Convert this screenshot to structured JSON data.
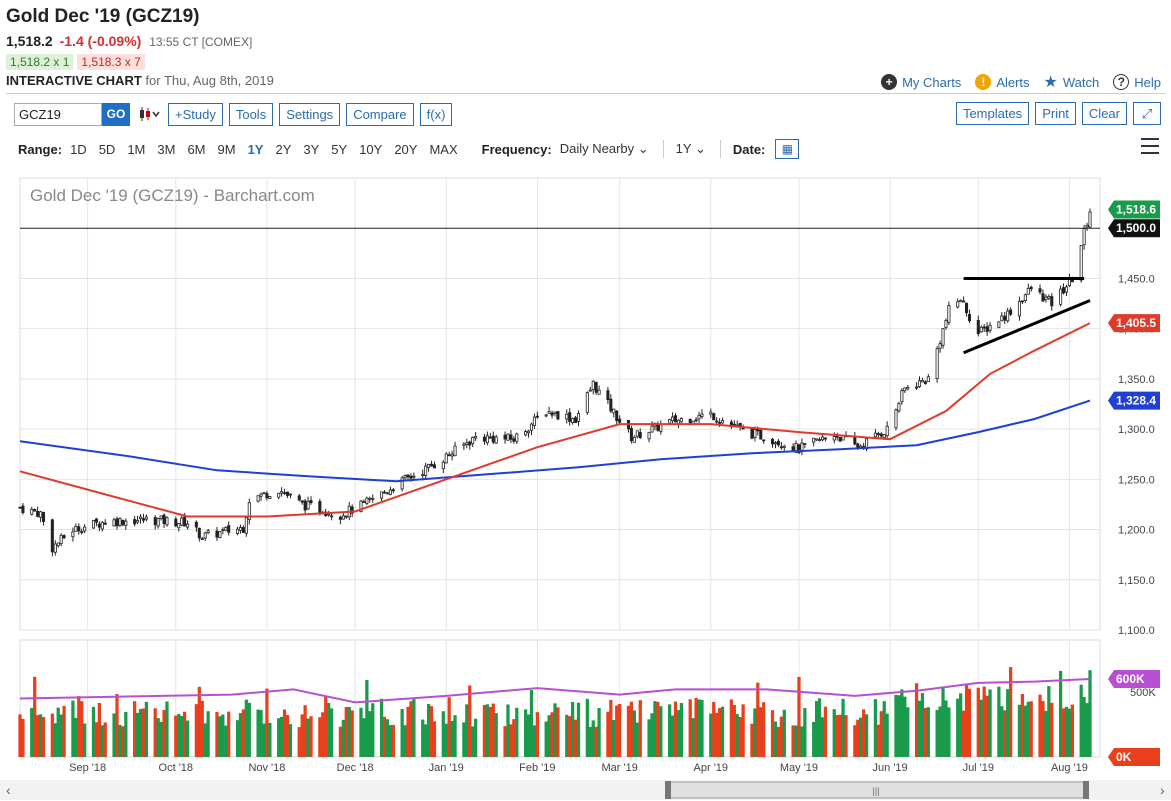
{
  "header": {
    "title": "Gold Dec '19 (GCZ19)",
    "last": "1,518.2",
    "change": "-1.4 (-0.09%)",
    "time": "13:55 CT [COMEX]",
    "bid": "1,518.2 x 1",
    "ask": "1,518.3 x 7",
    "chart_label": "INTERACTIVE CHART",
    "chart_date": "for Thu, Aug 8th, 2019"
  },
  "links": {
    "my_charts": "My Charts",
    "alerts": "Alerts",
    "watch": "Watch",
    "help": "Help"
  },
  "toolbar": {
    "symbol": "GCZ19",
    "go": "GO",
    "study": "+Study",
    "tools": "Tools",
    "settings": "Settings",
    "compare": "Compare",
    "fx": "f(x)",
    "templates": "Templates",
    "print": "Print",
    "clear": "Clear"
  },
  "range": {
    "label": "Range:",
    "options": [
      "1D",
      "5D",
      "1M",
      "3M",
      "6M",
      "9M",
      "1Y",
      "2Y",
      "3Y",
      "5Y",
      "10Y",
      "20Y",
      "MAX"
    ],
    "active": "1Y",
    "frequency_label": "Frequency:",
    "frequency": "Daily Nearby",
    "period": "1Y",
    "date_label": "Date:"
  },
  "colors": {
    "up": "#1a9b4b",
    "down": "#e8401c",
    "ma_fast": "#e03a2a",
    "ma_slow": "#1f3fd6",
    "vol_ma": "#b84fd0",
    "accent": "#2b6cb0"
  },
  "chart_data": {
    "type": "candlestick",
    "title": "Gold Dec '19 (GCZ19) - Barchart.com",
    "ylim": [
      1100,
      1550
    ],
    "y_ticks": [
      "1,100.0",
      "1,150.0",
      "1,200.0",
      "1,250.0",
      "1,300.0",
      "1,350.0",
      "1,400.0",
      "1,450.0"
    ],
    "x_ticks": [
      "Sep '18",
      "Oct '18",
      "Nov '18",
      "Dec '18",
      "Jan '19",
      "Feb '19",
      "Mar '19",
      "Apr '19",
      "May '19",
      "Jun '19",
      "Jul '19",
      "Aug '19"
    ],
    "price_labels": [
      {
        "value": 1518.6,
        "text": "1,518.6",
        "color": "#1a9b4b"
      },
      {
        "value": 1500.0,
        "text": "1,500.0",
        "color": "#111111"
      },
      {
        "value": 1405.5,
        "text": "1,405.5",
        "color": "#e03a2a"
      },
      {
        "value": 1328.4,
        "text": "1,328.4",
        "color": "#1f3fd6"
      }
    ],
    "horizontal_line": 1500,
    "price_path": [
      {
        "d": "2018-08-09",
        "v": 1222
      },
      {
        "d": "2018-08-16",
        "v": 1216
      },
      {
        "d": "2018-08-20",
        "v": 1182
      },
      {
        "d": "2018-08-27",
        "v": 1200
      },
      {
        "d": "2018-09-07",
        "v": 1208
      },
      {
        "d": "2018-09-21",
        "v": 1210
      },
      {
        "d": "2018-10-05",
        "v": 1207
      },
      {
        "d": "2018-10-10",
        "v": 1193
      },
      {
        "d": "2018-10-24",
        "v": 1202
      },
      {
        "d": "2018-10-26",
        "v": 1230
      },
      {
        "d": "2018-11-05",
        "v": 1240
      },
      {
        "d": "2018-11-13",
        "v": 1225
      },
      {
        "d": "2018-11-26",
        "v": 1215
      },
      {
        "d": "2018-12-04",
        "v": 1225
      },
      {
        "d": "2018-12-17",
        "v": 1248
      },
      {
        "d": "2018-12-28",
        "v": 1265
      },
      {
        "d": "2019-01-11",
        "v": 1292
      },
      {
        "d": "2019-01-24",
        "v": 1290
      },
      {
        "d": "2019-02-04",
        "v": 1318
      },
      {
        "d": "2019-02-14",
        "v": 1310
      },
      {
        "d": "2019-02-20",
        "v": 1345
      },
      {
        "d": "2019-03-05",
        "v": 1292
      },
      {
        "d": "2019-03-19",
        "v": 1308
      },
      {
        "d": "2019-04-01",
        "v": 1315
      },
      {
        "d": "2019-04-12",
        "v": 1298
      },
      {
        "d": "2019-04-22",
        "v": 1290
      },
      {
        "d": "2019-05-01",
        "v": 1280
      },
      {
        "d": "2019-05-13",
        "v": 1295
      },
      {
        "d": "2019-05-21",
        "v": 1282
      },
      {
        "d": "2019-05-31",
        "v": 1300
      },
      {
        "d": "2019-06-06",
        "v": 1340
      },
      {
        "d": "2019-06-14",
        "v": 1350
      },
      {
        "d": "2019-06-21",
        "v": 1418
      },
      {
        "d": "2019-06-25",
        "v": 1430
      },
      {
        "d": "2019-07-01",
        "v": 1395
      },
      {
        "d": "2019-07-11",
        "v": 1415
      },
      {
        "d": "2019-07-19",
        "v": 1440
      },
      {
        "d": "2019-07-26",
        "v": 1425
      },
      {
        "d": "2019-08-02",
        "v": 1450
      },
      {
        "d": "2019-08-08",
        "v": 1518
      }
    ],
    "ma_fast_path": [
      {
        "d": "2018-08-09",
        "v": 1258
      },
      {
        "d": "2018-09-07",
        "v": 1235
      },
      {
        "d": "2018-10-05",
        "v": 1213
      },
      {
        "d": "2018-11-01",
        "v": 1213
      },
      {
        "d": "2018-12-01",
        "v": 1218
      },
      {
        "d": "2019-01-01",
        "v": 1250
      },
      {
        "d": "2019-02-01",
        "v": 1282
      },
      {
        "d": "2019-03-01",
        "v": 1305
      },
      {
        "d": "2019-04-01",
        "v": 1305
      },
      {
        "d": "2019-05-01",
        "v": 1297
      },
      {
        "d": "2019-06-01",
        "v": 1290
      },
      {
        "d": "2019-06-20",
        "v": 1318
      },
      {
        "d": "2019-07-05",
        "v": 1355
      },
      {
        "d": "2019-07-20",
        "v": 1378
      },
      {
        "d": "2019-08-08",
        "v": 1405.5
      }
    ],
    "ma_slow_path": [
      {
        "d": "2018-08-09",
        "v": 1288
      },
      {
        "d": "2018-09-15",
        "v": 1273
      },
      {
        "d": "2018-10-15",
        "v": 1259
      },
      {
        "d": "2018-11-15",
        "v": 1253
      },
      {
        "d": "2018-12-15",
        "v": 1248
      },
      {
        "d": "2019-01-15",
        "v": 1255
      },
      {
        "d": "2019-02-15",
        "v": 1262
      },
      {
        "d": "2019-03-15",
        "v": 1270
      },
      {
        "d": "2019-04-15",
        "v": 1276
      },
      {
        "d": "2019-05-15",
        "v": 1280
      },
      {
        "d": "2019-06-10",
        "v": 1284
      },
      {
        "d": "2019-07-01",
        "v": 1297
      },
      {
        "d": "2019-07-20",
        "v": 1310
      },
      {
        "d": "2019-08-08",
        "v": 1328.4
      }
    ],
    "trendlines": [
      {
        "d1": "2019-06-26",
        "v1": 1450,
        "d2": "2019-08-06",
        "v2": 1450
      },
      {
        "d1": "2019-06-26",
        "v1": 1376,
        "d2": "2019-08-08",
        "v2": 1428
      }
    ],
    "volume": {
      "ylim": [
        0,
        900000
      ],
      "y_ticks": [
        "500K"
      ],
      "labels": [
        {
          "value": 600000,
          "text": "600K",
          "color": "#b84fd0"
        },
        {
          "value": 0,
          "text": "0K",
          "color": "#e8401c"
        }
      ],
      "avg_path": [
        {
          "d": "2018-08-09",
          "v": 450000
        },
        {
          "d": "2018-10-20",
          "v": 480000
        },
        {
          "d": "2018-11-10",
          "v": 520000
        },
        {
          "d": "2018-12-01",
          "v": 420000
        },
        {
          "d": "2019-01-01",
          "v": 470000
        },
        {
          "d": "2019-02-01",
          "v": 530000
        },
        {
          "d": "2019-03-01",
          "v": 480000
        },
        {
          "d": "2019-03-20",
          "v": 520000
        },
        {
          "d": "2019-04-20",
          "v": 520000
        },
        {
          "d": "2019-05-20",
          "v": 470000
        },
        {
          "d": "2019-06-10",
          "v": 510000
        },
        {
          "d": "2019-07-01",
          "v": 570000
        },
        {
          "d": "2019-07-20",
          "v": 580000
        },
        {
          "d": "2019-08-08",
          "v": 600000
        }
      ]
    }
  }
}
